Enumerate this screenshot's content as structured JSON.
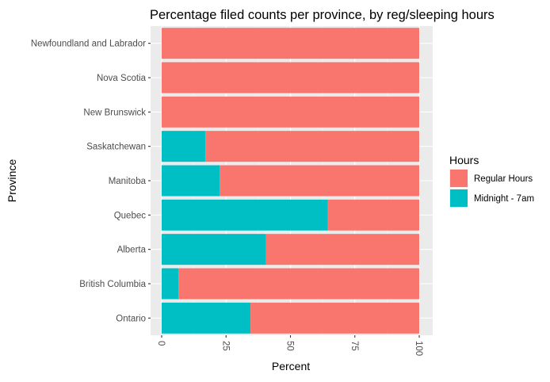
{
  "chart_data": {
    "type": "bar",
    "orientation": "horizontal",
    "stacked": true,
    "title": "Percentage filed counts per province, by reg/sleeping hours",
    "xlabel": "Percent",
    "ylabel": "Province",
    "xlim": [
      0,
      100
    ],
    "xticks": [
      0,
      25,
      50,
      75,
      100
    ],
    "xtick_labels": [
      "0",
      "25",
      "50",
      "75",
      "100"
    ],
    "grid": true,
    "legend_title": "Hours",
    "legend_position": "right",
    "categories": [
      "Newfoundland and Labrador",
      "Nova Scotia",
      "New Brunswick",
      "Saskatchewan",
      "Manitoba",
      "Quebec",
      "Alberta",
      "British Columbia",
      "Ontario"
    ],
    "series": [
      {
        "name": "Midnight - 7am",
        "color": "#00BFC4",
        "values": [
          0,
          0,
          0,
          17,
          22.5,
          64.5,
          40.5,
          6.5,
          34.5
        ]
      },
      {
        "name": "Regular Hours",
        "color": "#F8766D",
        "values": [
          100,
          100,
          100,
          83,
          77.5,
          35.5,
          59.5,
          93.5,
          65.5
        ]
      }
    ],
    "legend_order": [
      "Regular Hours",
      "Midnight - 7am"
    ]
  }
}
